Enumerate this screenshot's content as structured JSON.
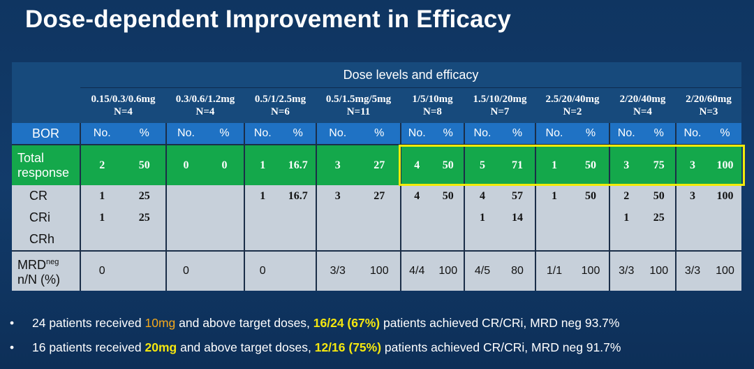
{
  "title": "Dose-dependent Improvement in Efficacy",
  "table": {
    "group_header": "Dose levels and efficacy",
    "bor_label": "BOR",
    "no_label": "No.",
    "pct_label": "%",
    "doses": [
      {
        "dose": "0.15/0.3/0.6mg",
        "n": "N=4"
      },
      {
        "dose": "0.3/0.6/1.2mg",
        "n": "N=4"
      },
      {
        "dose": "0.5/1/2.5mg",
        "n": "N=6"
      },
      {
        "dose": "0.5/1.5mg/5mg",
        "n": "N=11"
      },
      {
        "dose": "1/5/10mg",
        "n": "N=8"
      },
      {
        "dose": "1.5/10/20mg",
        "n": "N=7"
      },
      {
        "dose": "2.5/20/40mg",
        "n": "N=2"
      },
      {
        "dose": "2/20/40mg",
        "n": "N=4"
      },
      {
        "dose": "2/20/60mg",
        "n": "N=3"
      }
    ],
    "rows": {
      "total": {
        "label_1": "Total",
        "label_2": "response",
        "cells": [
          [
            "2",
            "50"
          ],
          [
            "0",
            "0"
          ],
          [
            "1",
            "16.7"
          ],
          [
            "3",
            "27"
          ],
          [
            "4",
            "50"
          ],
          [
            "5",
            "71"
          ],
          [
            "1",
            "50"
          ],
          [
            "3",
            "75"
          ],
          [
            "3",
            "100"
          ]
        ]
      },
      "cr": {
        "label": "CR",
        "cells": [
          [
            "1",
            "25"
          ],
          [
            "",
            ""
          ],
          [
            "1",
            "16.7"
          ],
          [
            "3",
            "27"
          ],
          [
            "4",
            "50"
          ],
          [
            "4",
            "57"
          ],
          [
            "1",
            "50"
          ],
          [
            "2",
            "50"
          ],
          [
            "3",
            "100"
          ]
        ]
      },
      "cri": {
        "label": "CRi",
        "cells": [
          [
            "1",
            "25"
          ],
          [
            "",
            ""
          ],
          [
            "",
            ""
          ],
          [
            "",
            ""
          ],
          [
            "",
            ""
          ],
          [
            "1",
            "14"
          ],
          [
            "",
            ""
          ],
          [
            "1",
            "25"
          ],
          [
            "",
            ""
          ]
        ]
      },
      "crh": {
        "label": "CRh",
        "cells": [
          [
            "",
            ""
          ],
          [
            "",
            ""
          ],
          [
            "",
            ""
          ],
          [
            "",
            ""
          ],
          [
            "",
            ""
          ],
          [
            "",
            ""
          ],
          [
            "",
            ""
          ],
          [
            "",
            ""
          ],
          [
            "",
            ""
          ]
        ]
      },
      "mrd": {
        "label_main": "MRD",
        "label_sup": "neg",
        "label_2": "n/N (%)",
        "cells": [
          [
            "0",
            ""
          ],
          [
            "0",
            ""
          ],
          [
            "0",
            ""
          ],
          [
            "3/3",
            "100"
          ],
          [
            "4/4",
            "100"
          ],
          [
            "4/5",
            "80"
          ],
          [
            "1/1",
            "100"
          ],
          [
            "3/3",
            "100"
          ],
          [
            "3/3",
            "100"
          ]
        ]
      }
    },
    "highlight_color": "#f2ea0a"
  },
  "bullets": [
    {
      "marker": "•",
      "a": "24 patients received ",
      "b": "10mg",
      "c": " and above target doses, ",
      "d": "16/24 (67%)",
      "e": " patients achieved CR/CRi,  MRD neg 93.7%"
    },
    {
      "marker": "•",
      "a": "16 patients received ",
      "b": "20mg",
      "c": " and above target doses, ",
      "d": "12/16 (75%)",
      "e": " patients achieved CR/CRi, MRD neg 91.7%"
    }
  ]
}
